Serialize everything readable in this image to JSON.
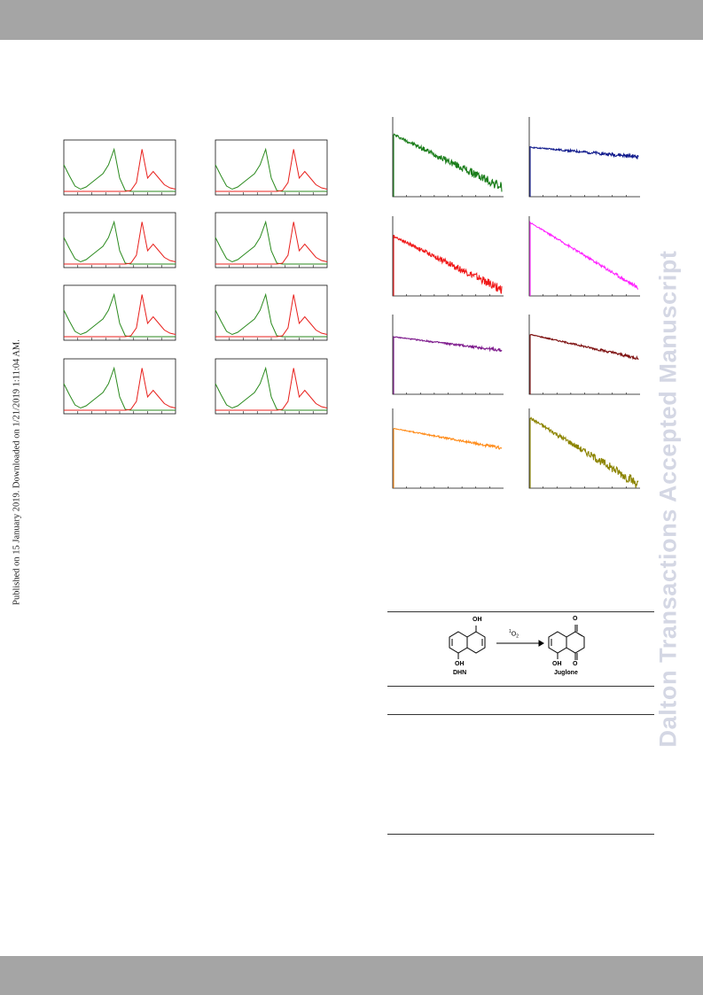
{
  "side_note": "Published on 15 January 2019. Downloaded on 1/21/2019 1:11:04 AM.",
  "watermark": "Dalton Transactions Accepted Manuscript",
  "colors": {
    "band": "#a5a5a5",
    "absorption": "#2b8a1e",
    "emission": "#e8211d",
    "decay_series": [
      "#1a7d1a",
      "#101a8c",
      "#f01818",
      "#ff22ff",
      "#7d1a8c",
      "#7d1010",
      "#ff8c1a",
      "#8c8400"
    ]
  },
  "scheme": {
    "reactant": "DHN",
    "reagent_superscript": "1",
    "reagent_main": "O",
    "reagent_subscript": "2",
    "product": "Juglone",
    "oh_top": "OH",
    "oh_bottom": "OH",
    "oh_product": "OH",
    "oxo_top": "O",
    "oxo_bottom": "O"
  },
  "chart_data": [
    {
      "type": "line",
      "panels": 8,
      "layout": "4 rows × 2 columns",
      "description_of_series": [
        "absorption (green)",
        "emission (red)"
      ],
      "xlabel": "",
      "ylabel": "",
      "x": [
        0,
        0.05,
        0.1,
        0.15,
        0.2,
        0.25,
        0.3,
        0.35,
        0.4,
        0.45,
        0.5,
        0.55,
        0.6,
        0.65,
        0.7,
        0.75,
        0.8,
        0.85,
        0.9,
        0.95,
        1.0
      ],
      "series": [
        {
          "values": [
            0.6,
            0.35,
            0.12,
            0.05,
            0.1,
            0.2,
            0.3,
            0.4,
            0.6,
            0.95,
            0.3,
            0.02,
            0,
            0,
            0,
            0,
            0,
            0,
            0,
            0,
            0
          ]
        },
        {
          "values": [
            0,
            0,
            0,
            0,
            0,
            0,
            0,
            0,
            0,
            0,
            0,
            0,
            0.02,
            0.2,
            0.95,
            0.3,
            0.45,
            0.3,
            0.15,
            0.08,
            0.05
          ]
        }
      ]
    },
    {
      "type": "line",
      "panels": 8,
      "layout": "4 rows × 2 columns",
      "description_of_series": [
        "luminescence decay traces"
      ],
      "xlabel": "",
      "ylabel": "",
      "yscale": "log",
      "series": [
        {
          "start": 0.78,
          "end": 0.12,
          "noise": 0.1
        },
        {
          "start": 0.62,
          "end": 0.5,
          "noise": 0.04
        },
        {
          "start": 0.75,
          "end": 0.08,
          "noise": 0.09
        },
        {
          "start": 0.92,
          "end": 0.1,
          "noise": 0.04
        },
        {
          "start": 0.72,
          "end": 0.55,
          "noise": 0.03
        },
        {
          "start": 0.75,
          "end": 0.45,
          "noise": 0.03
        },
        {
          "start": 0.75,
          "end": 0.5,
          "noise": 0.03
        },
        {
          "start": 0.88,
          "end": 0.05,
          "noise": 0.1
        }
      ]
    }
  ]
}
